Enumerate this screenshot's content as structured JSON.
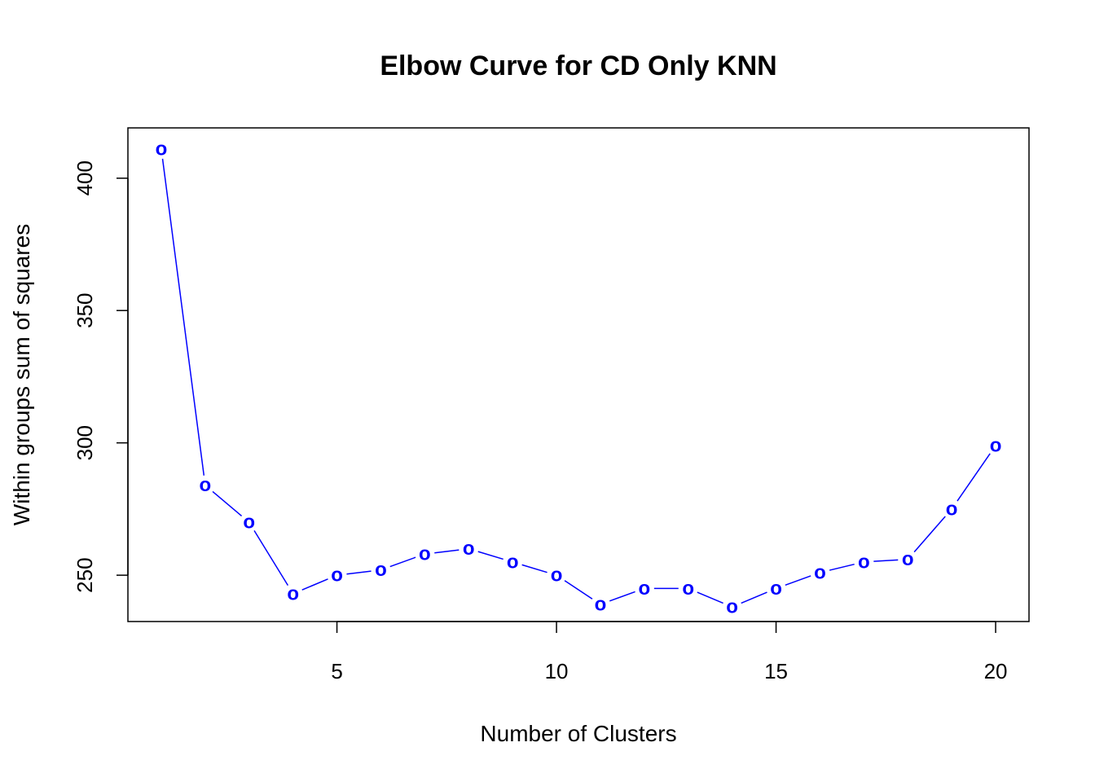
{
  "chart_data": {
    "type": "line",
    "title": "Elbow Curve for CD Only KNN",
    "xlabel": "Number of Clusters",
    "ylabel": "Within groups sum of squares",
    "x": [
      1,
      2,
      3,
      4,
      5,
      6,
      7,
      8,
      9,
      10,
      11,
      12,
      13,
      14,
      15,
      16,
      17,
      18,
      19,
      20
    ],
    "y": [
      411,
      284,
      270,
      243,
      250,
      252,
      258,
      260,
      255,
      250,
      239,
      245,
      245,
      238,
      245,
      251,
      255,
      256,
      275,
      299
    ],
    "xticks": [
      5,
      10,
      15,
      20
    ],
    "yticks": [
      250,
      300,
      350,
      400
    ],
    "xlim": [
      0.24,
      20.76
    ],
    "ylim": [
      232.5,
      419.0
    ],
    "marker": "o",
    "color": "#0000ff",
    "grid": false,
    "legend": false
  }
}
